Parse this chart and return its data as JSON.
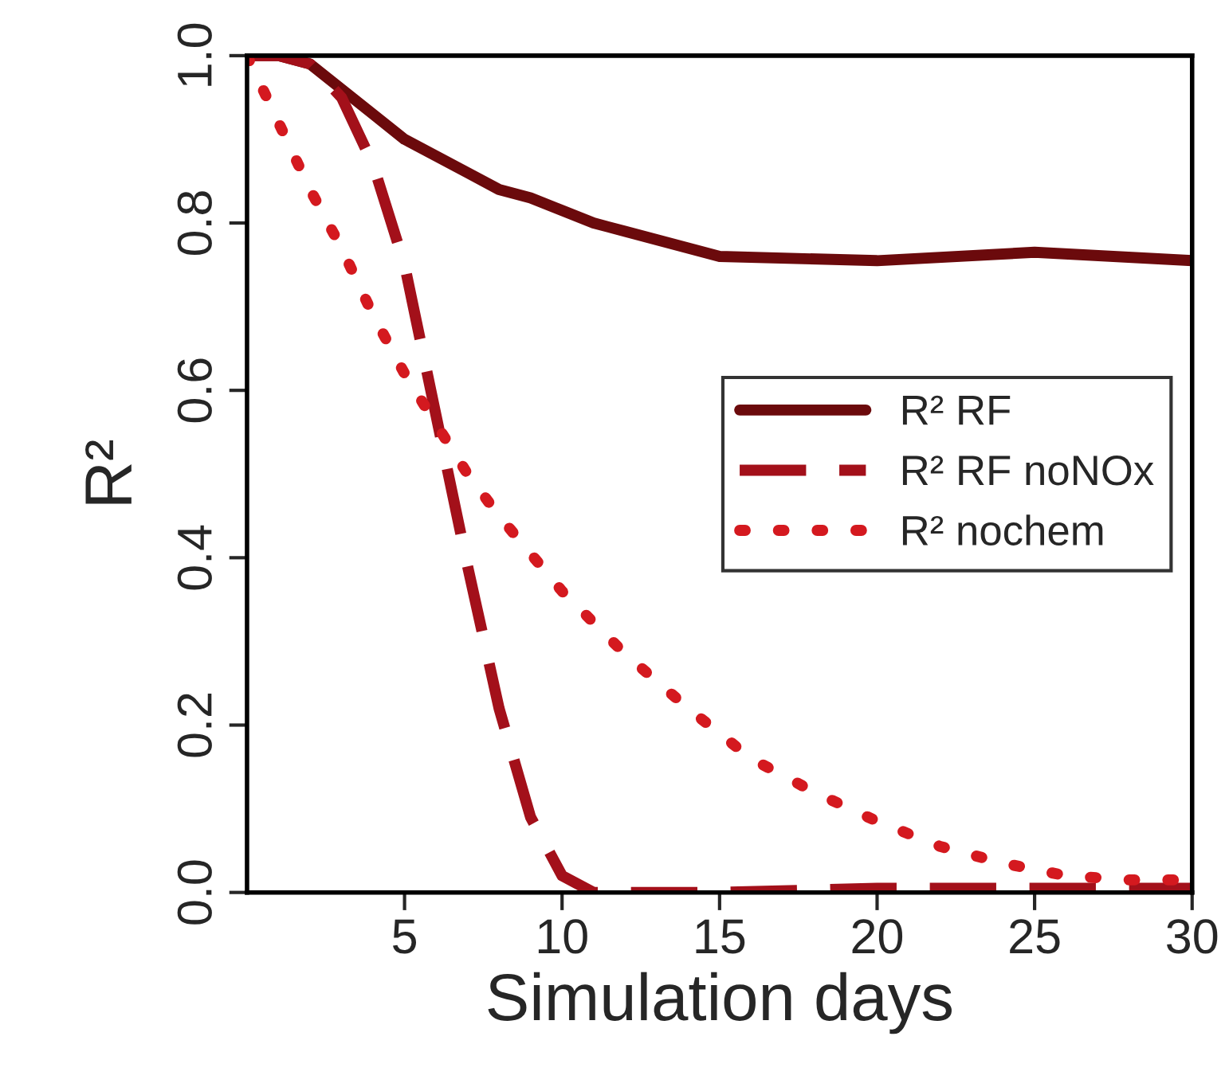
{
  "chart_data": {
    "type": "line",
    "xlabel": "Simulation days",
    "ylabel": "R²",
    "xlim": [
      0,
      30
    ],
    "xticks": [
      5,
      10,
      15,
      20,
      25,
      30
    ],
    "ylim": [
      0,
      1
    ],
    "yticks": [
      {
        "value": 0,
        "label": "0.0"
      },
      0.2,
      0.4,
      0.6,
      0.8,
      {
        "value": 1,
        "label": "1.0"
      }
    ],
    "grid": false,
    "legend": "right",
    "marker": "none",
    "series": [
      {
        "name": "R² RF",
        "color": "#6b0a0c",
        "line_style": "solid",
        "x": [
          0,
          1,
          2,
          3,
          4,
          5,
          6,
          7,
          8,
          9,
          10,
          11,
          12,
          13,
          14,
          15,
          20,
          25,
          30
        ],
        "values": [
          1.0,
          1.0,
          0.99,
          0.96,
          0.93,
          0.9,
          0.88,
          0.86,
          0.84,
          0.83,
          0.815,
          0.8,
          0.79,
          0.78,
          0.77,
          0.76,
          0.755,
          0.765,
          0.755
        ]
      },
      {
        "name": "R² RF noNOx",
        "color": "#a3101a",
        "line_style": "dashed",
        "x": [
          0,
          1,
          2,
          3,
          4,
          5,
          6,
          7,
          8,
          9,
          10,
          11,
          15,
          20,
          25,
          30
        ],
        "values": [
          1.0,
          1.0,
          0.99,
          0.95,
          0.87,
          0.75,
          0.57,
          0.39,
          0.22,
          0.09,
          0.02,
          0.0,
          0.0,
          0.005,
          0.005,
          0.005
        ]
      },
      {
        "name": "R² nochem",
        "color": "#d4191f",
        "line_style": "dotted",
        "x": [
          0,
          1,
          2,
          3,
          4,
          5,
          6,
          7,
          8,
          10,
          12,
          14,
          16,
          18,
          20,
          22,
          24,
          26,
          28,
          30
        ],
        "values": [
          1.0,
          0.92,
          0.84,
          0.77,
          0.69,
          0.62,
          0.56,
          0.5,
          0.45,
          0.36,
          0.285,
          0.22,
          0.16,
          0.12,
          0.085,
          0.055,
          0.035,
          0.02,
          0.015,
          0.015
        ]
      }
    ]
  }
}
